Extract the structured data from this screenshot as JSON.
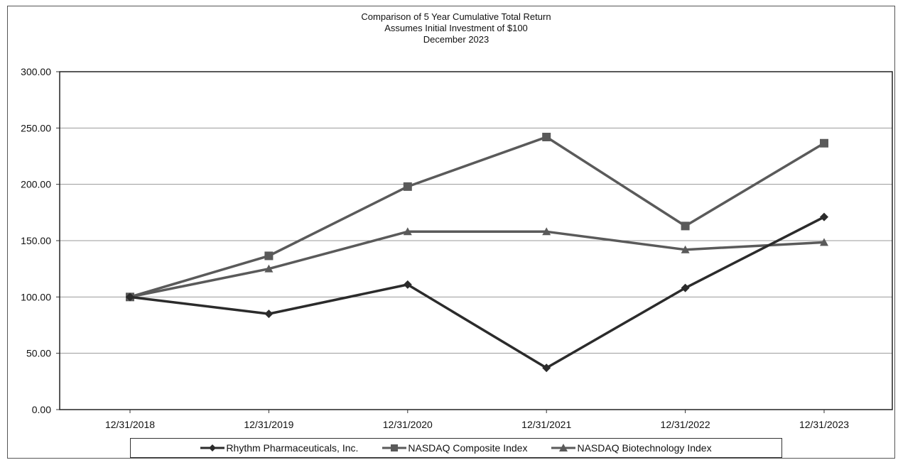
{
  "chart_data": {
    "type": "line",
    "title": "Comparison of 5 Year Cumulative Total Return",
    "subtitle": "Assumes Initial Investment of $100",
    "subtitle2": "December 2023",
    "xlabel": "",
    "ylabel": "",
    "categories": [
      "12/31/2018",
      "12/31/2019",
      "12/31/2020",
      "12/31/2021",
      "12/31/2022",
      "12/31/2023"
    ],
    "y_ticks": [
      "0.00",
      "50.00",
      "100.00",
      "150.00",
      "200.00",
      "250.00",
      "300.00"
    ],
    "ylim": [
      0,
      300
    ],
    "grid": true,
    "legend_position": "bottom",
    "series": [
      {
        "name": "Rhythm Pharmaceuticals, Inc.",
        "marker": "diamond",
        "color": "#2b2b2b",
        "values": [
          100.0,
          85.0,
          111.0,
          37.0,
          108.0,
          171.0
        ]
      },
      {
        "name": "NASDAQ Composite Index",
        "marker": "square",
        "color": "#5a5a5a",
        "values": [
          100.0,
          136.5,
          198.0,
          242.0,
          163.0,
          236.5
        ]
      },
      {
        "name": "NASDAQ Biotechnology Index",
        "marker": "triangle",
        "color": "#5a5a5a",
        "values": [
          100.0,
          125.0,
          158.0,
          158.0,
          142.0,
          148.5
        ]
      }
    ]
  }
}
